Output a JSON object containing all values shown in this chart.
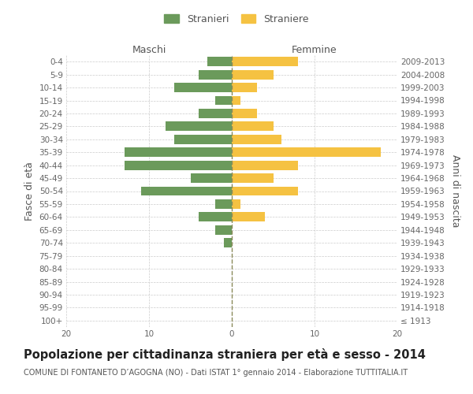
{
  "age_groups": [
    "100+",
    "95-99",
    "90-94",
    "85-89",
    "80-84",
    "75-79",
    "70-74",
    "65-69",
    "60-64",
    "55-59",
    "50-54",
    "45-49",
    "40-44",
    "35-39",
    "30-34",
    "25-29",
    "20-24",
    "15-19",
    "10-14",
    "5-9",
    "0-4"
  ],
  "birth_years": [
    "≤ 1913",
    "1914-1918",
    "1919-1923",
    "1924-1928",
    "1929-1933",
    "1934-1938",
    "1939-1943",
    "1944-1948",
    "1949-1953",
    "1954-1958",
    "1959-1963",
    "1964-1968",
    "1969-1973",
    "1974-1978",
    "1979-1983",
    "1984-1988",
    "1989-1993",
    "1994-1998",
    "1999-2003",
    "2004-2008",
    "2009-2013"
  ],
  "maschi": [
    0,
    0,
    0,
    0,
    0,
    0,
    1,
    2,
    4,
    2,
    11,
    5,
    13,
    13,
    7,
    8,
    4,
    2,
    7,
    4,
    3
  ],
  "femmine": [
    0,
    0,
    0,
    0,
    0,
    0,
    0,
    0,
    4,
    1,
    8,
    5,
    8,
    18,
    6,
    5,
    3,
    1,
    3,
    5,
    8
  ],
  "maschi_color": "#6b9a5b",
  "femmine_color": "#f5c242",
  "grid_color": "#cccccc",
  "dashed_line_color": "#8a8a5a",
  "title": "Popolazione per cittadinanza straniera per età e sesso - 2014",
  "subtitle": "COMUNE DI FONTANETO D’AGOGNA (NO) - Dati ISTAT 1° gennaio 2014 - Elaborazione TUTTITALIA.IT",
  "ylabel_left": "Fasce di età",
  "ylabel_right": "Anni di nascita",
  "xlabel_maschi": "Maschi",
  "xlabel_femmine": "Femmine",
  "legend_stranieri": "Stranieri",
  "legend_straniere": "Straniere",
  "xlim": 20,
  "background_color": "#ffffff",
  "title_fontsize": 10.5,
  "subtitle_fontsize": 7.0,
  "tick_fontsize": 7.5,
  "label_fontsize": 9,
  "header_fontsize": 9
}
